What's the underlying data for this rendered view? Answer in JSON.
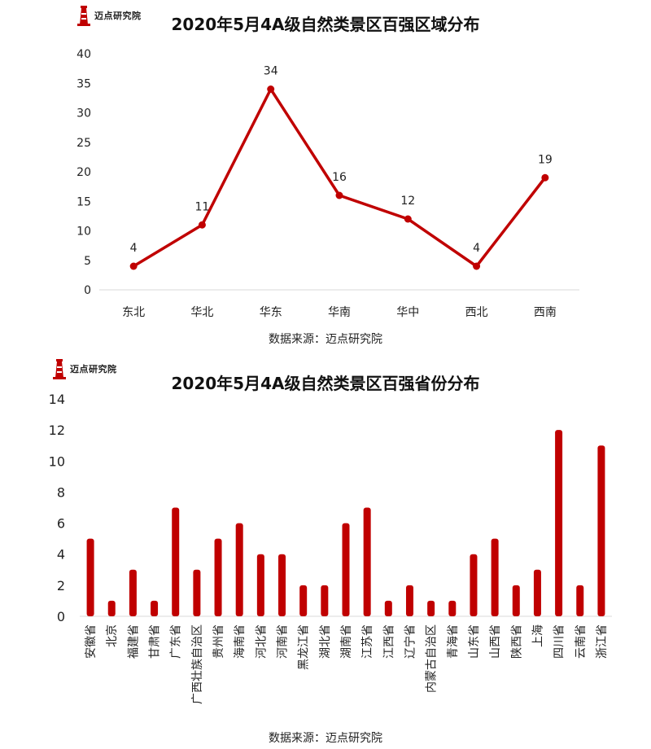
{
  "logo": {
    "name": "迈点研究院"
  },
  "colors": {
    "accent": "#c00000",
    "axis": "#d9d9d9",
    "text": "#111111"
  },
  "chart_data": [
    {
      "type": "line",
      "title": "2020年5月4A级自然类景区百强区域分布",
      "categories": [
        "东北",
        "华北",
        "华东",
        "华南",
        "华中",
        "西北",
        "西南"
      ],
      "values": [
        4,
        11,
        34,
        16,
        12,
        4,
        19
      ],
      "ylim": [
        0,
        40
      ],
      "yticks": [
        0,
        5,
        10,
        15,
        20,
        25,
        30,
        35,
        40
      ],
      "data_labels": true,
      "grid": false,
      "source": "数据来源：迈点研究院"
    },
    {
      "type": "bar",
      "title": "2020年5月4A级自然类景区百强省份分布",
      "categories": [
        "安徽省",
        "北京",
        "福建省",
        "甘肃省",
        "广东省",
        "广西壮族自治区",
        "贵州省",
        "海南省",
        "河北省",
        "河南省",
        "黑龙江省",
        "湖北省",
        "湖南省",
        "江苏省",
        "江西省",
        "辽宁省",
        "内蒙古自治区",
        "青海省",
        "山东省",
        "山西省",
        "陕西省",
        "上海",
        "四川省",
        "云南省",
        "浙江省"
      ],
      "values": [
        5,
        1,
        3,
        1,
        7,
        3,
        5,
        6,
        4,
        4,
        2,
        2,
        6,
        7,
        1,
        2,
        1,
        1,
        4,
        5,
        2,
        3,
        12,
        2,
        11
      ],
      "ylim": [
        0,
        14
      ],
      "yticks": [
        0,
        2,
        4,
        6,
        8,
        10,
        12,
        14
      ],
      "grid": false,
      "source": "数据来源：迈点研究院"
    }
  ]
}
